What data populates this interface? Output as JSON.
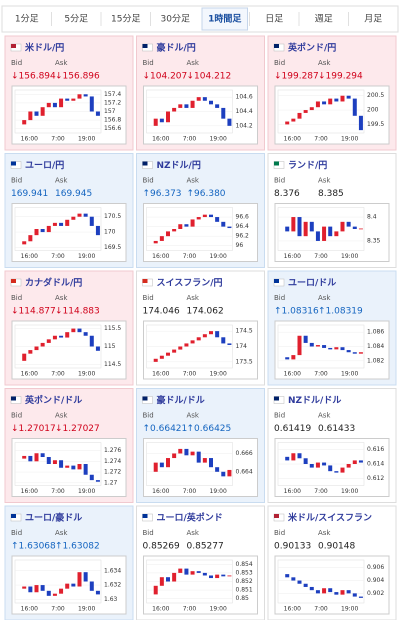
{
  "tabs": [
    {
      "label": "1分足",
      "active": false
    },
    {
      "label": "5分足",
      "active": false
    },
    {
      "label": "15分足",
      "active": false
    },
    {
      "label": "30分足",
      "active": false
    },
    {
      "label": "1時間足",
      "active": true
    },
    {
      "label": "日足",
      "active": false
    },
    {
      "label": "週足",
      "active": false
    },
    {
      "label": "月足",
      "active": false
    }
  ],
  "panels": [
    {
      "title": "米ドル/円",
      "bid_label": "Bid",
      "ask_label": "Ask",
      "bid": "↓156.894",
      "ask": "↓156.896",
      "theme": "down",
      "flag_color": "#b22234",
      "chart": {
        "ylim": [
          156.5,
          157.5
        ],
        "yticks": [
          157.4,
          157.2,
          157,
          156.8,
          156.6
        ],
        "xticks": [
          "16:00",
          "7:00",
          "19:00"
        ],
        "closes": [
          156.7,
          156.8,
          157.0,
          156.9,
          157.1,
          157.2,
          157.1,
          157.3,
          157.25,
          157.3,
          157.4,
          157.35,
          157.0,
          156.9
        ]
      }
    },
    {
      "title": "豪ドル/円",
      "bid_label": "Bid",
      "ask_label": "Ask",
      "bid": "↓104.207",
      "ask": "↓104.212",
      "theme": "down",
      "flag_color": "#012169",
      "chart": {
        "ylim": [
          104.1,
          104.7
        ],
        "yticks": [
          104.6,
          104.4,
          104.2
        ],
        "xticks": [
          "16:00",
          "7:00",
          "19:00"
        ],
        "closes": [
          104.2,
          104.3,
          104.25,
          104.4,
          104.45,
          104.5,
          104.45,
          104.55,
          104.6,
          104.55,
          104.5,
          104.45,
          104.3,
          104.2
        ]
      }
    },
    {
      "title": "英ポンド/円",
      "bid_label": "Bid",
      "ask_label": "Ask",
      "bid": "↓199.287",
      "ask": "↓199.294",
      "theme": "down",
      "flag_color": "#012169",
      "chart": {
        "ylim": [
          199.2,
          200.7
        ],
        "yticks": [
          200.5,
          200,
          199.5
        ],
        "xticks": [
          "16:00",
          "7:00",
          "19:00"
        ],
        "closes": [
          199.5,
          199.6,
          199.7,
          199.9,
          200.0,
          200.1,
          200.3,
          200.2,
          200.4,
          200.3,
          200.5,
          200.4,
          199.8,
          199.3
        ]
      }
    },
    {
      "title": "ユーロ/円",
      "bid_label": "Bid",
      "ask_label": "Ask",
      "bid": "169.941",
      "ask": "169.945",
      "theme": "up",
      "flag_color": "#003399",
      "chart": {
        "ylim": [
          169.4,
          170.8
        ],
        "yticks": [
          170.5,
          170,
          169.5
        ],
        "xticks": [
          "16:00",
          "7:00",
          "19:00"
        ],
        "closes": [
          169.6,
          169.7,
          169.9,
          170.1,
          170.0,
          170.2,
          170.3,
          170.2,
          170.4,
          170.5,
          170.6,
          170.5,
          170.2,
          169.9
        ]
      }
    },
    {
      "title": "NZドル/円",
      "bid_label": "Bid",
      "ask_label": "Ask",
      "bid": "↑96.373",
      "ask": "↑96.380",
      "theme": "up",
      "flag_color": "#012169",
      "chart": {
        "ylim": [
          95.9,
          96.8
        ],
        "yticks": [
          96.6,
          96.4,
          96.2,
          96
        ],
        "xticks": [
          "16:00",
          "7:00",
          "19:00"
        ],
        "closes": [
          96.05,
          96.1,
          96.2,
          96.3,
          96.35,
          96.45,
          96.4,
          96.55,
          96.6,
          96.65,
          96.6,
          96.5,
          96.4,
          96.37
        ]
      }
    },
    {
      "title": "ランド/円",
      "bid_label": "Bid",
      "ask_label": "Ask",
      "bid": "8.376",
      "ask": "8.385",
      "theme": "flat",
      "flag_color": "#007a4d",
      "chart": {
        "ylim": [
          8.33,
          8.42
        ],
        "yticks": [
          8.4,
          8.35
        ],
        "xticks": [
          "16:00",
          "7:00",
          "19:00"
        ],
        "closes": [
          8.38,
          8.37,
          8.4,
          8.36,
          8.39,
          8.37,
          8.35,
          8.38,
          8.36,
          8.37,
          8.39,
          8.38,
          8.375,
          8.376
        ]
      }
    },
    {
      "title": "カナダドル/円",
      "bid_label": "Bid",
      "ask_label": "Ask",
      "bid": "↓114.877",
      "ask": "↓114.883",
      "theme": "down",
      "flag_color": "#d52b1e",
      "chart": {
        "ylim": [
          114.4,
          115.6
        ],
        "yticks": [
          115.5,
          115,
          114.5
        ],
        "xticks": [
          "16:00",
          "7:00",
          "19:00"
        ],
        "closes": [
          114.6,
          114.8,
          114.9,
          115.0,
          115.1,
          115.2,
          115.3,
          115.25,
          115.4,
          115.5,
          115.4,
          115.3,
          115.0,
          114.88
        ]
      }
    },
    {
      "title": "スイスフラン/円",
      "bid_label": "Bid",
      "ask_label": "Ask",
      "bid": "174.046",
      "ask": "174.062",
      "theme": "flat",
      "flag_color": "#d52b1e",
      "chart": {
        "ylim": [
          173.3,
          174.7
        ],
        "yticks": [
          174.5,
          174,
          173.5
        ],
        "xticks": [
          "16:00",
          "7:00",
          "19:00"
        ],
        "closes": [
          173.5,
          173.6,
          173.7,
          173.8,
          173.9,
          174.0,
          174.1,
          174.2,
          174.3,
          174.4,
          174.5,
          174.3,
          174.1,
          174.05
        ]
      }
    },
    {
      "title": "ユーロ/ドル",
      "bid_label": "Bid",
      "ask_label": "Ask",
      "bid": "↑1.08316",
      "ask": "↑1.08319",
      "theme": "up",
      "flag_color": "#003399",
      "chart": {
        "ylim": [
          1.081,
          1.087
        ],
        "yticks": [
          1.086,
          1.084,
          1.082
        ],
        "xticks": [
          "16:00",
          "7:00",
          "19:00"
        ],
        "closes": [
          1.0825,
          1.0822,
          1.0828,
          1.0855,
          1.0845,
          1.084,
          1.0842,
          1.0838,
          1.0836,
          1.0839,
          1.0835,
          1.0832,
          1.083,
          1.0832
        ]
      }
    },
    {
      "title": "英ポンド/ドル",
      "bid_label": "Bid",
      "ask_label": "Ask",
      "bid": "↓1.27017",
      "ask": "↓1.27027",
      "theme": "down",
      "flag_color": "#012169",
      "chart": {
        "ylim": [
          1.2695,
          1.2775
        ],
        "yticks": [
          1.276,
          1.274,
          1.272,
          1.27
        ],
        "xticks": [
          "16:00",
          "7:00",
          "19:00"
        ],
        "closes": [
          1.2745,
          1.275,
          1.274,
          1.2755,
          1.2748,
          1.2735,
          1.2742,
          1.2728,
          1.2732,
          1.2725,
          1.2735,
          1.2715,
          1.2705,
          1.2702
        ]
      }
    },
    {
      "title": "豪ドル/ドル",
      "bid_label": "Bid",
      "ask_label": "Ask",
      "bid": "↑0.66421",
      "ask": "↑0.66425",
      "theme": "up",
      "flag_color": "#012169",
      "chart": {
        "ylim": [
          0.6625,
          0.6672
        ],
        "yticks": [
          0.666,
          0.664
        ],
        "xticks": [
          "16:00",
          "7:00",
          "19:00"
        ],
        "closes": [
          0.664,
          0.665,
          0.6645,
          0.6655,
          0.666,
          0.6665,
          0.6658,
          0.6662,
          0.665,
          0.6655,
          0.6645,
          0.664,
          0.6635,
          0.6642
        ]
      }
    },
    {
      "title": "NZドル/ドル",
      "bid_label": "Bid",
      "ask_label": "Ask",
      "bid": "0.61419",
      "ask": "0.61433",
      "theme": "flat",
      "flag_color": "#012169",
      "chart": {
        "ylim": [
          0.611,
          0.617
        ],
        "yticks": [
          0.616,
          0.614,
          0.612
        ],
        "xticks": [
          "16:00",
          "7:00",
          "19:00"
        ],
        "closes": [
          0.615,
          0.6145,
          0.6155,
          0.6148,
          0.614,
          0.6135,
          0.6142,
          0.6138,
          0.613,
          0.6128,
          0.6135,
          0.614,
          0.6145,
          0.6142
        ]
      }
    },
    {
      "title": "ユーロ/豪ドル",
      "bid_label": "Bid",
      "ask_label": "Ask",
      "bid": "↑1.63068",
      "ask": "↑1.63082",
      "theme": "up",
      "flag_color": "#003399",
      "chart": {
        "ylim": [
          1.6295,
          1.6355
        ],
        "yticks": [
          1.634,
          1.632,
          1.63
        ],
        "xticks": [
          "16:00",
          "7:00",
          "19:00"
        ],
        "closes": [
          1.6315,
          1.6318,
          1.631,
          1.632,
          1.6312,
          1.6305,
          1.6308,
          1.6315,
          1.6322,
          1.6318,
          1.6338,
          1.6325,
          1.6312,
          1.6307
        ]
      }
    },
    {
      "title": "ユーロ/英ポンド",
      "bid_label": "Bid",
      "ask_label": "Ask",
      "bid": "0.85269",
      "ask": "0.85277",
      "theme": "flat",
      "flag_color": "#003399",
      "chart": {
        "ylim": [
          0.8495,
          0.8545
        ],
        "yticks": [
          0.854,
          0.853,
          0.852,
          0.851,
          0.85
        ],
        "xticks": [
          "16:00",
          "7:00",
          "19:00"
        ],
        "closes": [
          0.8505,
          0.8515,
          0.8525,
          0.852,
          0.853,
          0.8535,
          0.8528,
          0.8532,
          0.853,
          0.8527,
          0.8524,
          0.8528,
          0.8526,
          0.8527
        ]
      }
    },
    {
      "title": "米ドル/スイスフラン",
      "bid_label": "Bid",
      "ask_label": "Ask",
      "bid": "0.90133",
      "ask": "0.90148",
      "theme": "flat",
      "flag_color": "#b22234",
      "chart": {
        "ylim": [
          0.9005,
          0.9072
        ],
        "yticks": [
          0.906,
          0.904,
          0.902
        ],
        "xticks": [
          "16:00",
          "7:00",
          "19:00"
        ],
        "closes": [
          0.905,
          0.9045,
          0.904,
          0.9035,
          0.903,
          0.9025,
          0.902,
          0.9028,
          0.9022,
          0.9018,
          0.9025,
          0.902,
          0.9015,
          0.9013
        ]
      }
    }
  ]
}
